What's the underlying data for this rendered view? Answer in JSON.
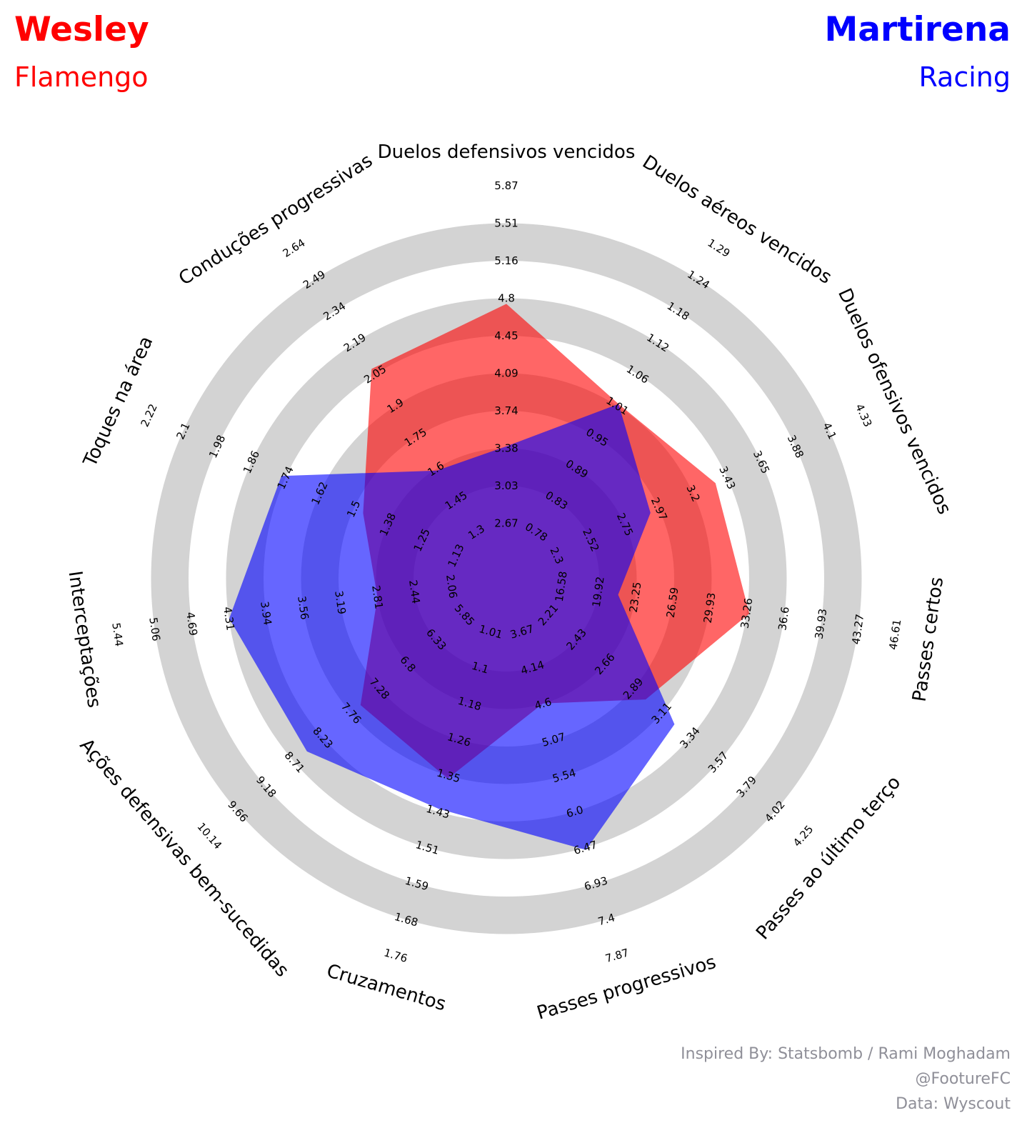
{
  "header": {
    "player1": {
      "name": "Wesley",
      "team": "Flamengo",
      "color": "#ff0000"
    },
    "player2": {
      "name": "Martirena",
      "team": "Racing",
      "color": "#0000ff"
    }
  },
  "credits": {
    "line1": "Inspired By: Statsbomb / Rami Moghadam",
    "line2": "@FootureFC",
    "line3": "Data: Wyscout"
  },
  "chart_data": {
    "type": "radar",
    "ring_fill": "#d3d3d3",
    "params": [
      {
        "label": "Duelos defensivos vencidos",
        "ticks": [
          "2.67",
          "3.03",
          "3.38",
          "3.74",
          "4.09",
          "4.45",
          "4.8",
          "5.16",
          "5.51",
          "5.87"
        ]
      },
      {
        "label": "Duelos aéreos vencidos",
        "ticks": [
          "0.78",
          "0.83",
          "0.89",
          "0.95",
          "1.01",
          "1.06",
          "1.12",
          "1.18",
          "1.24",
          "1.29"
        ]
      },
      {
        "label": "Duelos ofensivos vencidos",
        "ticks": [
          "2.3",
          "2.52",
          "2.75",
          "2.97",
          "3.2",
          "3.43",
          "3.65",
          "3.88",
          "4.1",
          "4.33"
        ]
      },
      {
        "label": "Passes certos",
        "ticks": [
          "16.58",
          "19.92",
          "23.25",
          "26.59",
          "29.93",
          "33.26",
          "36.6",
          "39.93",
          "43.27",
          "46.61"
        ]
      },
      {
        "label": "Passes ao último terço",
        "ticks": [
          "2.21",
          "2.43",
          "2.66",
          "2.89",
          "3.11",
          "3.34",
          "3.57",
          "3.79",
          "4.02",
          "4.25"
        ]
      },
      {
        "label": "Passes progressivos",
        "ticks": [
          "3.67",
          "4.14",
          "4.6",
          "5.07",
          "5.54",
          "6.0",
          "6.47",
          "6.93",
          "7.4",
          "7.87"
        ]
      },
      {
        "label": "Cruzamentos",
        "ticks": [
          "1.01",
          "1.1",
          "1.18",
          "1.26",
          "1.35",
          "1.43",
          "1.51",
          "1.59",
          "1.68",
          "1.76"
        ]
      },
      {
        "label": "Ações defensivas bem-sucedidas",
        "ticks": [
          "5.85",
          "6.33",
          "6.8",
          "7.28",
          "7.76",
          "8.23",
          "8.71",
          "9.18",
          "9.66",
          "10.14"
        ]
      },
      {
        "label": "Interceptações",
        "ticks": [
          "2.06",
          "2.44",
          "2.81",
          "3.19",
          "3.56",
          "3.94",
          "4.31",
          "4.69",
          "5.06",
          "5.44"
        ]
      },
      {
        "label": "Toques na área",
        "ticks": [
          "1.13",
          "1.25",
          "1.38",
          "1.5",
          "1.62",
          "1.74",
          "1.86",
          "1.98",
          "2.1",
          "2.22"
        ]
      },
      {
        "label": "Conduções progressivas",
        "ticks": [
          "1.3",
          "1.45",
          "1.6",
          "1.75",
          "1.9",
          "2.05",
          "2.19",
          "2.34",
          "2.49",
          "2.64"
        ]
      }
    ],
    "series": [
      {
        "name": "Wesley",
        "color": "#ff0000",
        "values": [
          4.75,
          1.01,
          3.35,
          33.5,
          2.99,
          4.6,
          1.35,
          7.6,
          2.81,
          1.46,
          2.07
        ]
      },
      {
        "name": "Martirena",
        "color": "#0000ff",
        "values": [
          3.4,
          1.01,
          2.92,
          21.7,
          3.22,
          6.5,
          1.42,
          8.5,
          4.31,
          1.75,
          1.59
        ]
      }
    ]
  }
}
